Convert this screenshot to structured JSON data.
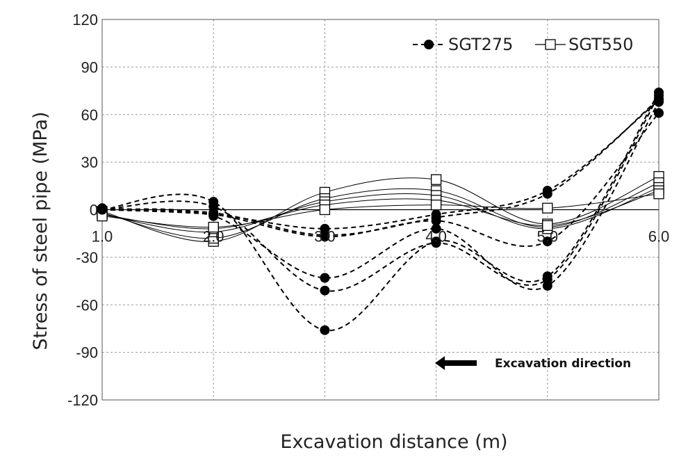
{
  "chart_data": {
    "type": "line",
    "title": "",
    "xlabel": "Excavation distance (m)",
    "ylabel": "Stress of steel pipe (MPa)",
    "x": [
      1.0,
      2.0,
      3.0,
      4.0,
      5.0,
      6.0
    ],
    "x_tick_labels": [
      "1.0",
      "2.0",
      "3.0",
      "4.0",
      "5.0",
      "6.0"
    ],
    "xlim": [
      1.0,
      6.0
    ],
    "ylim": [
      -120,
      120
    ],
    "y_ticks": [
      120,
      90,
      60,
      30,
      0,
      -30,
      -60,
      -90,
      -120
    ],
    "grid": "dashed",
    "legend_position": "top-right",
    "legend": [
      "SGT275",
      "SGT550"
    ],
    "series": [
      {
        "name": "SGT275",
        "group": "SGT275",
        "values": [
          0,
          5,
          -76,
          -20,
          -42,
          74
        ]
      },
      {
        "name": "SGT275",
        "group": "SGT275",
        "values": [
          0,
          2,
          -51,
          -21,
          -44,
          72
        ]
      },
      {
        "name": "SGT275",
        "group": "SGT275",
        "values": [
          0,
          -4,
          -43,
          -12,
          -48,
          68
        ]
      },
      {
        "name": "SGT275",
        "group": "SGT275",
        "values": [
          0,
          -2,
          -16,
          -5,
          10,
          70
        ]
      },
      {
        "name": "SGT275",
        "group": "SGT275",
        "values": [
          0,
          -3,
          -12,
          -3,
          12,
          69
        ]
      },
      {
        "name": "SGT275",
        "group": "SGT275",
        "values": [
          1,
          -3,
          -17,
          -7,
          -20,
          61
        ]
      },
      {
        "name": "SGT550",
        "group": "SGT550",
        "values": [
          -1,
          -20,
          11,
          19,
          -9,
          21
        ]
      },
      {
        "name": "SGT550",
        "group": "SGT550",
        "values": [
          -2,
          -18,
          7,
          12,
          -11,
          17
        ]
      },
      {
        "name": "SGT550",
        "group": "SGT550",
        "values": [
          -3,
          -14,
          5,
          9,
          -12,
          14
        ]
      },
      {
        "name": "SGT550",
        "group": "SGT550",
        "values": [
          -3,
          -12,
          3,
          6,
          -10,
          12
        ]
      },
      {
        "name": "SGT550",
        "group": "SGT550",
        "values": [
          -4,
          -11,
          0,
          3,
          1,
          10
        ]
      }
    ],
    "annotation": {
      "text": "Excavation direction",
      "arrow": "left-arrow-icon"
    }
  }
}
